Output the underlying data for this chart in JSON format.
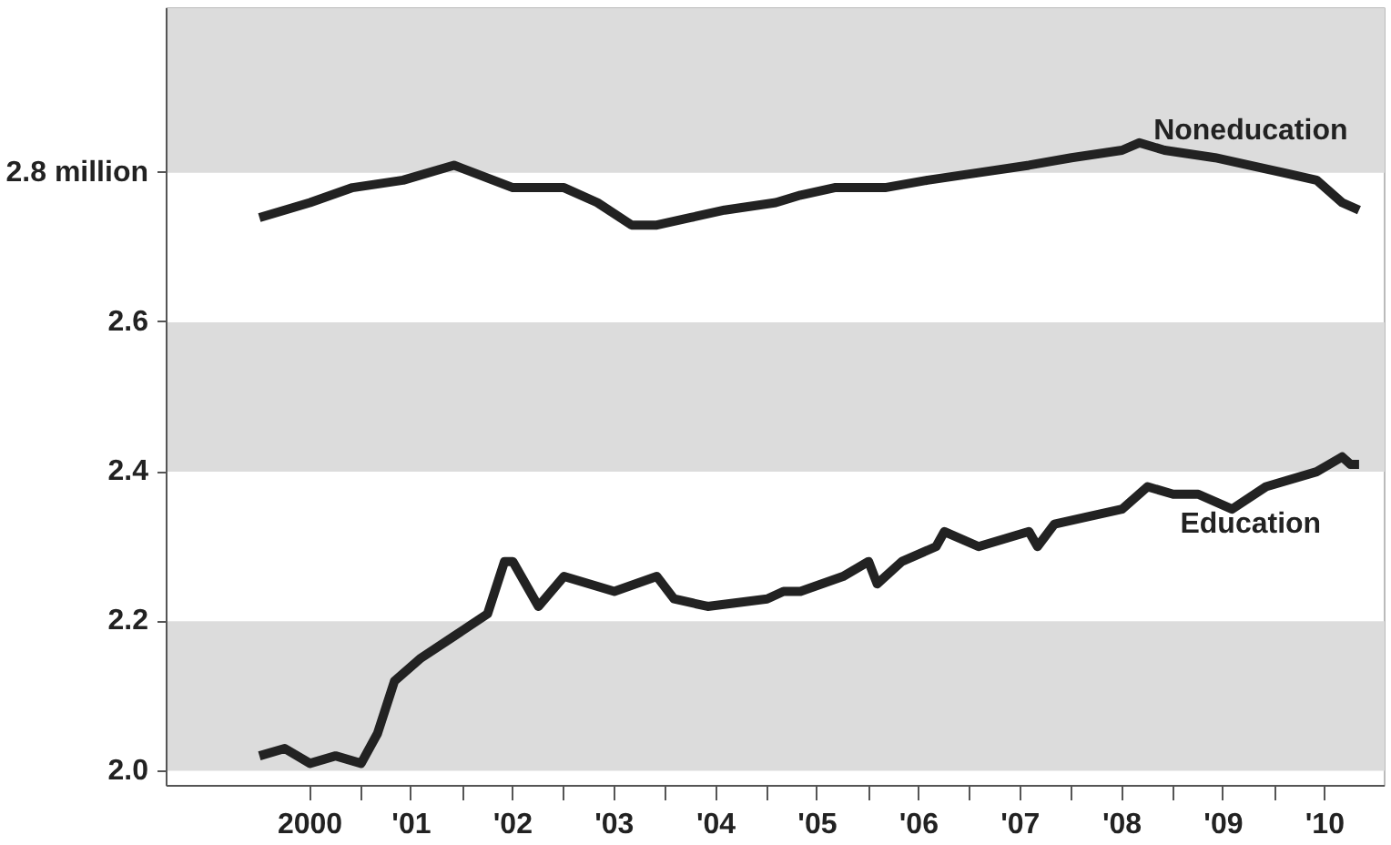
{
  "chart_data": {
    "type": "line",
    "grid": false,
    "legend": false,
    "marker": "none",
    "line_style": "solid",
    "xlim": [
      "1999-02",
      "2011-02"
    ],
    "ylim": [
      1.98,
      3.02
    ],
    "xticks": [
      {
        "value": "2000-07",
        "label": "2000"
      },
      {
        "value": "2001-01",
        "label": null
      },
      {
        "value": "2001-07",
        "label": "'01"
      },
      {
        "value": "2002-01",
        "label": null
      },
      {
        "value": "2002-07",
        "label": "'02"
      },
      {
        "value": "2003-01",
        "label": null
      },
      {
        "value": "2003-07",
        "label": "'03"
      },
      {
        "value": "2004-01",
        "label": null
      },
      {
        "value": "2004-07",
        "label": "'04"
      },
      {
        "value": "2005-01",
        "label": null
      },
      {
        "value": "2005-07",
        "label": "'05"
      },
      {
        "value": "2006-01",
        "label": null
      },
      {
        "value": "2006-07",
        "label": "'06"
      },
      {
        "value": "2007-01",
        "label": null
      },
      {
        "value": "2007-07",
        "label": "'07"
      },
      {
        "value": "2008-01",
        "label": null
      },
      {
        "value": "2008-07",
        "label": "'08"
      },
      {
        "value": "2009-01",
        "label": null
      },
      {
        "value": "2009-07",
        "label": "'09"
      },
      {
        "value": "2010-01",
        "label": null
      },
      {
        "value": "2010-07",
        "label": "'10"
      }
    ],
    "yticks": [
      {
        "value": 2,
        "label": "2.0"
      },
      2.2,
      2.4,
      2.6,
      {
        "value": 2.8,
        "label": "2.8 million"
      }
    ],
    "bands": [
      {
        "axis": "y",
        "from": 2.0,
        "to": 2.2,
        "color": "#dcdcdc"
      },
      {
        "axis": "y",
        "from": 2.4,
        "to": 2.6,
        "color": "#dcdcdc"
      },
      {
        "axis": "y",
        "from": 2.8,
        "to": 3.02,
        "color": "#dcdcdc"
      }
    ],
    "series": [
      {
        "name": "Noneducation",
        "color": "#222222",
        "x": [
          "2000-01",
          "2000-07",
          "2000-12",
          "2001-06",
          "2001-12",
          "2002-07",
          "2003-01",
          "2003-05",
          "2003-09",
          "2003-12",
          "2004-04",
          "2004-08",
          "2005-02",
          "2005-05",
          "2005-09",
          "2006-03",
          "2006-08",
          "2007-02",
          "2007-08",
          "2008-01",
          "2008-07",
          "2008-09",
          "2008-12",
          "2009-06",
          "2009-10",
          "2010-02",
          "2010-06",
          "2010-09",
          "2010-11"
        ],
        "values": [
          2.74,
          2.76,
          2.78,
          2.79,
          2.81,
          2.78,
          2.78,
          2.76,
          2.73,
          2.73,
          2.74,
          2.75,
          2.76,
          2.77,
          2.78,
          2.78,
          2.79,
          2.8,
          2.81,
          2.82,
          2.83,
          2.84,
          2.83,
          2.82,
          2.81,
          2.8,
          2.79,
          2.76,
          2.75
        ]
      },
      {
        "name": "Education",
        "color": "#222222",
        "x": [
          "2000-01",
          "2000-04",
          "2000-07",
          "2000-10",
          "2001-01",
          "2001-03",
          "2001-05",
          "2001-08",
          "2001-12",
          "2002-04",
          "2002-06",
          "2002-07",
          "2002-10",
          "2003-01",
          "2003-07",
          "2003-12",
          "2004-02",
          "2004-06",
          "2005-01",
          "2005-03",
          "2005-05",
          "2005-10",
          "2006-01",
          "2006-02",
          "2006-05",
          "2006-09",
          "2006-10",
          "2007-02",
          "2007-08",
          "2007-09",
          "2007-11",
          "2008-03",
          "2008-07",
          "2008-10",
          "2009-01",
          "2009-04",
          "2009-08",
          "2009-12",
          "2010-06",
          "2010-09",
          "2010-10",
          "2010-11"
        ],
        "values": [
          2.02,
          2.03,
          2.01,
          2.02,
          2.01,
          2.05,
          2.12,
          2.15,
          2.18,
          2.21,
          2.28,
          2.28,
          2.22,
          2.26,
          2.24,
          2.26,
          2.23,
          2.22,
          2.23,
          2.24,
          2.24,
          2.26,
          2.28,
          2.25,
          2.28,
          2.3,
          2.32,
          2.3,
          2.32,
          2.3,
          2.33,
          2.34,
          2.35,
          2.38,
          2.37,
          2.37,
          2.35,
          2.38,
          2.4,
          2.42,
          2.41,
          2.41
        ]
      }
    ]
  }
}
